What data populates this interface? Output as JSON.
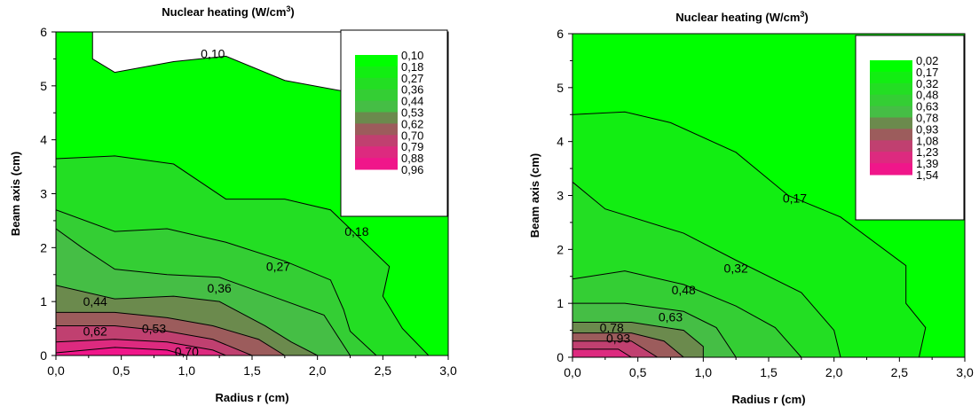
{
  "chart_data": [
    {
      "type": "contour",
      "title": "Nuclear heating (W/cm",
      "title_sup": "3",
      "title_end": ")",
      "xlabel": "Radius r (cm)",
      "ylabel": "Beam axis (cm)",
      "xlim": [
        0,
        3
      ],
      "ylim": [
        0,
        6
      ],
      "x_ticks": [
        "0,0",
        "0,5",
        "1,0",
        "1,5",
        "2,0",
        "2,5",
        "3,0"
      ],
      "y_ticks": [
        "0",
        "1",
        "2",
        "3",
        "4",
        "5",
        "6"
      ],
      "legend_placement": "top-right",
      "levels": [
        "0,10",
        "0,18",
        "0,27",
        "0,36",
        "0,44",
        "0,53",
        "0,62",
        "0,70",
        "0,79",
        "0,88",
        "0,96"
      ],
      "level_colors": [
        "#00ff00",
        "#12ee12",
        "#23de23",
        "#34ce34",
        "#45be45",
        "#6b8a4d",
        "#9c5c5c",
        "#c04070",
        "#dd2a7f",
        "#f0168a",
        "#ff0090"
      ],
      "contour_labels": [
        {
          "text": "0,10",
          "x": 1.2,
          "y": 5.6
        },
        {
          "text": "0,18",
          "x": 2.3,
          "y": 2.3
        },
        {
          "text": "0,27",
          "x": 1.7,
          "y": 1.65
        },
        {
          "text": "0,36",
          "x": 1.25,
          "y": 1.25
        },
        {
          "text": "0,44",
          "x": 0.3,
          "y": 1.0
        },
        {
          "text": "0,62",
          "x": 0.3,
          "y": 0.45
        },
        {
          "text": "0,53",
          "x": 0.75,
          "y": 0.5
        },
        {
          "text": "0,70",
          "x": 1.0,
          "y": 0.07
        }
      ],
      "contours": [
        [
          [
            0.28,
            6.0
          ],
          [
            0.28,
            5.5
          ],
          [
            0.45,
            5.25
          ],
          [
            0.9,
            5.45
          ],
          [
            1.3,
            5.55
          ],
          [
            1.75,
            5.1
          ],
          [
            2.2,
            4.9
          ],
          [
            2.4,
            4.6
          ]
        ],
        [
          [
            0.0,
            3.65
          ],
          [
            0.45,
            3.7
          ],
          [
            0.9,
            3.55
          ],
          [
            1.3,
            2.9
          ],
          [
            1.75,
            2.9
          ],
          [
            2.1,
            2.7
          ],
          [
            2.55,
            1.65
          ],
          [
            2.5,
            1.1
          ],
          [
            2.65,
            0.5
          ],
          [
            2.85,
            0.0
          ]
        ],
        [
          [
            0.0,
            2.7
          ],
          [
            0.45,
            2.3
          ],
          [
            0.85,
            2.35
          ],
          [
            1.3,
            2.1
          ],
          [
            1.75,
            1.75
          ],
          [
            2.1,
            1.4
          ],
          [
            2.2,
            0.85
          ],
          [
            2.25,
            0.45
          ],
          [
            2.45,
            0.0
          ]
        ],
        [
          [
            0.0,
            2.35
          ],
          [
            0.2,
            2.0
          ],
          [
            0.45,
            1.6
          ],
          [
            0.85,
            1.5
          ],
          [
            1.25,
            1.45
          ],
          [
            1.65,
            1.1
          ],
          [
            2.05,
            0.75
          ],
          [
            2.25,
            0.0
          ]
        ],
        [
          [
            0.0,
            1.3
          ],
          [
            0.45,
            1.05
          ],
          [
            0.9,
            1.1
          ],
          [
            1.25,
            1.0
          ],
          [
            1.6,
            0.55
          ],
          [
            1.8,
            0.25
          ],
          [
            2.0,
            0.0
          ]
        ],
        [
          [
            0.0,
            0.8
          ],
          [
            0.45,
            0.8
          ],
          [
            0.85,
            0.7
          ],
          [
            1.2,
            0.55
          ],
          [
            1.55,
            0.3
          ],
          [
            1.75,
            0.0
          ]
        ],
        [
          [
            0.0,
            0.55
          ],
          [
            0.45,
            0.55
          ],
          [
            0.85,
            0.45
          ],
          [
            1.2,
            0.3
          ],
          [
            1.5,
            0.0
          ]
        ],
        [
          [
            0.0,
            0.25
          ],
          [
            0.45,
            0.3
          ],
          [
            0.85,
            0.25
          ],
          [
            1.2,
            0.1
          ],
          [
            1.3,
            0.0
          ]
        ],
        [
          [
            0.0,
            0.05
          ],
          [
            0.45,
            0.15
          ],
          [
            0.85,
            0.1
          ],
          [
            1.0,
            0.0
          ]
        ]
      ]
    },
    {
      "type": "contour",
      "title": "Nuclear heating (W/cm",
      "title_sup": "3",
      "title_end": ")",
      "xlabel": "Radius r (cm)",
      "ylabel": "Beam axis (cm)",
      "xlim": [
        0,
        3
      ],
      "ylim": [
        0,
        6
      ],
      "x_ticks": [
        "0,0",
        "0,5",
        "1,0",
        "1,5",
        "2,0",
        "2,5",
        "3,0"
      ],
      "y_ticks": [
        "0",
        "1",
        "2",
        "3",
        "4",
        "5",
        "6"
      ],
      "legend_placement": "top-right",
      "levels": [
        "0,02",
        "0,17",
        "0,32",
        "0,48",
        "0,63",
        "0,78",
        "0,93",
        "1,08",
        "1,23",
        "1,39",
        "1,54"
      ],
      "level_colors": [
        "#00ff00",
        "#12ee12",
        "#23de23",
        "#34ce34",
        "#45be45",
        "#6b8a4d",
        "#9c5c5c",
        "#c04070",
        "#dd2a7f",
        "#f0168a",
        "#ff0090"
      ],
      "contour_labels": [
        {
          "text": "0,17",
          "x": 1.7,
          "y": 2.95
        },
        {
          "text": "0,32",
          "x": 1.25,
          "y": 1.65
        },
        {
          "text": "0,48",
          "x": 0.85,
          "y": 1.25
        },
        {
          "text": "0,63",
          "x": 0.75,
          "y": 0.75
        },
        {
          "text": "0,78",
          "x": 0.3,
          "y": 0.55
        },
        {
          "text": "0,93",
          "x": 0.35,
          "y": 0.35
        }
      ],
      "contours": [
        [
          [
            0.0,
            4.5
          ],
          [
            0.4,
            4.55
          ],
          [
            0.75,
            4.35
          ],
          [
            1.25,
            3.8
          ],
          [
            1.65,
            3.0
          ],
          [
            2.05,
            2.6
          ],
          [
            2.55,
            1.7
          ],
          [
            2.55,
            1.0
          ],
          [
            2.7,
            0.55
          ],
          [
            2.65,
            0.0
          ]
        ],
        [
          [
            0.0,
            3.25
          ],
          [
            0.25,
            2.75
          ],
          [
            0.45,
            2.6
          ],
          [
            0.85,
            2.3
          ],
          [
            1.25,
            1.8
          ],
          [
            1.75,
            1.2
          ],
          [
            2.0,
            0.5
          ],
          [
            2.05,
            0.0
          ]
        ],
        [
          [
            0.0,
            1.45
          ],
          [
            0.4,
            1.6
          ],
          [
            0.85,
            1.35
          ],
          [
            1.25,
            0.95
          ],
          [
            1.55,
            0.55
          ],
          [
            1.75,
            0.0
          ]
        ],
        [
          [
            0.0,
            1.0
          ],
          [
            0.4,
            1.0
          ],
          [
            0.85,
            0.85
          ],
          [
            1.1,
            0.55
          ],
          [
            1.25,
            0.0
          ]
        ],
        [
          [
            0.0,
            0.65
          ],
          [
            0.45,
            0.65
          ],
          [
            0.85,
            0.5
          ],
          [
            1.0,
            0.2
          ],
          [
            1.0,
            0.0
          ]
        ],
        [
          [
            0.0,
            0.45
          ],
          [
            0.45,
            0.45
          ],
          [
            0.7,
            0.3
          ],
          [
            0.85,
            0.0
          ]
        ],
        [
          [
            0.0,
            0.3
          ],
          [
            0.45,
            0.3
          ],
          [
            0.65,
            0.0
          ]
        ],
        [
          [
            0.0,
            0.15
          ],
          [
            0.35,
            0.15
          ],
          [
            0.45,
            0.0
          ]
        ]
      ]
    }
  ]
}
